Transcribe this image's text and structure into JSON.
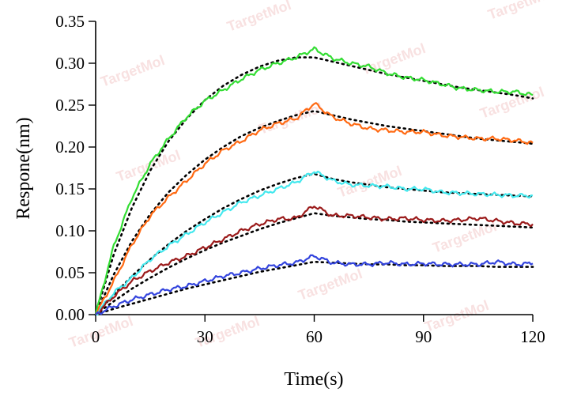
{
  "watermark": "TargetMol",
  "chart_data": {
    "type": "line",
    "title": "",
    "xlabel": "Time(s)",
    "ylabel": "Respone(nm)",
    "xlim": [
      0,
      120
    ],
    "ylim": [
      0,
      0.35
    ],
    "xticks": [
      0,
      30,
      60,
      90,
      120
    ],
    "xtick_labels": [
      "0",
      "30",
      "60",
      "90",
      "120"
    ],
    "yticks": [
      0,
      0.05,
      0.1,
      0.15,
      0.2,
      0.25,
      0.3,
      0.35
    ],
    "ytick_labels": [
      "0.00",
      "0.05",
      "0.10",
      "0.15",
      "0.20",
      "0.25",
      "0.30",
      "0.35"
    ],
    "grid": false,
    "legend": "none",
    "x": [
      0,
      5,
      10,
      15,
      20,
      25,
      30,
      35,
      40,
      45,
      50,
      55,
      60,
      65,
      70,
      75,
      80,
      85,
      90,
      95,
      100,
      105,
      110,
      115,
      120
    ],
    "series": [
      {
        "color": "#33dd33",
        "values": [
          0,
          0.082,
          0.14,
          0.18,
          0.21,
          0.236,
          0.255,
          0.268,
          0.281,
          0.292,
          0.3,
          0.307,
          0.317,
          0.306,
          0.3,
          0.296,
          0.288,
          0.283,
          0.28,
          0.275,
          0.27,
          0.268,
          0.266,
          0.266,
          0.262
        ]
      },
      {
        "color": "#ff6a13",
        "values": [
          0,
          0.04,
          0.084,
          0.118,
          0.14,
          0.16,
          0.18,
          0.196,
          0.207,
          0.22,
          0.228,
          0.234,
          0.252,
          0.236,
          0.228,
          0.222,
          0.22,
          0.218,
          0.218,
          0.214,
          0.212,
          0.21,
          0.21,
          0.208,
          0.205
        ]
      },
      {
        "color": "#44e8ee",
        "values": [
          0,
          0.026,
          0.044,
          0.066,
          0.082,
          0.096,
          0.11,
          0.122,
          0.134,
          0.142,
          0.15,
          0.158,
          0.171,
          0.16,
          0.155,
          0.154,
          0.153,
          0.15,
          0.15,
          0.146,
          0.145,
          0.144,
          0.143,
          0.142,
          0.142
        ]
      },
      {
        "color": "#9b1b1b",
        "values": [
          0,
          0.022,
          0.04,
          0.052,
          0.062,
          0.07,
          0.08,
          0.09,
          0.1,
          0.108,
          0.114,
          0.115,
          0.13,
          0.118,
          0.118,
          0.116,
          0.114,
          0.115,
          0.113,
          0.112,
          0.113,
          0.115,
          0.112,
          0.109,
          0.108
        ]
      },
      {
        "color": "#3344dd",
        "values": [
          0,
          0.01,
          0.018,
          0.024,
          0.03,
          0.034,
          0.04,
          0.046,
          0.05,
          0.055,
          0.059,
          0.062,
          0.07,
          0.062,
          0.06,
          0.06,
          0.062,
          0.06,
          0.061,
          0.06,
          0.06,
          0.06,
          0.063,
          0.06,
          0.061
        ]
      }
    ],
    "fits": [
      {
        "values": [
          0,
          0.072,
          0.128,
          0.172,
          0.207,
          0.234,
          0.256,
          0.273,
          0.286,
          0.296,
          0.303,
          0.307,
          0.307,
          0.302,
          0.297,
          0.292,
          0.287,
          0.283,
          0.279,
          0.275,
          0.271,
          0.268,
          0.265,
          0.262,
          0.258
        ]
      },
      {
        "values": [
          0,
          0.048,
          0.088,
          0.12,
          0.146,
          0.167,
          0.185,
          0.2,
          0.213,
          0.223,
          0.231,
          0.238,
          0.243,
          0.238,
          0.233,
          0.229,
          0.225,
          0.222,
          0.219,
          0.216,
          0.213,
          0.21,
          0.208,
          0.206,
          0.204
        ]
      },
      {
        "values": [
          0,
          0.024,
          0.046,
          0.066,
          0.084,
          0.1,
          0.114,
          0.127,
          0.138,
          0.148,
          0.156,
          0.163,
          0.168,
          0.162,
          0.158,
          0.155,
          0.152,
          0.15,
          0.148,
          0.146,
          0.145,
          0.144,
          0.143,
          0.142,
          0.141
        ]
      },
      {
        "values": [
          0,
          0.016,
          0.031,
          0.044,
          0.056,
          0.067,
          0.077,
          0.086,
          0.094,
          0.102,
          0.109,
          0.115,
          0.121,
          0.118,
          0.116,
          0.114,
          0.113,
          0.111,
          0.11,
          0.109,
          0.108,
          0.107,
          0.106,
          0.105,
          0.104
        ]
      },
      {
        "values": [
          0,
          0.007,
          0.013,
          0.019,
          0.025,
          0.031,
          0.036,
          0.041,
          0.046,
          0.051,
          0.055,
          0.059,
          0.063,
          0.062,
          0.061,
          0.06,
          0.06,
          0.059,
          0.059,
          0.058,
          0.058,
          0.058,
          0.057,
          0.057,
          0.057
        ]
      }
    ]
  }
}
